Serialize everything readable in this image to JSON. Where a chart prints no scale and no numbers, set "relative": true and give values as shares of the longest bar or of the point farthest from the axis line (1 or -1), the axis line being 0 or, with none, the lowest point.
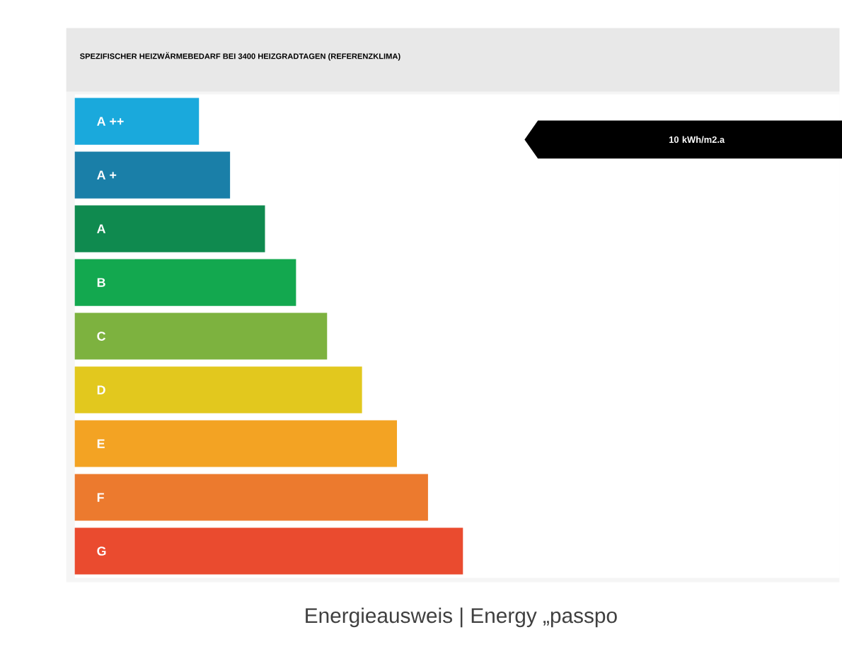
{
  "chart_data": {
    "type": "bar",
    "orientation": "horizontal",
    "relative": true,
    "title": "SPEZIFISCHER HEIZWÄRMEBEDARF BEI 3400 HEIZGRADTAGEN (REFERENZKLIMA)",
    "categories": [
      "A ++",
      "A +",
      "A",
      "B",
      "C",
      "D",
      "E",
      "F",
      "G"
    ],
    "values": [
      0.32,
      0.4,
      0.49,
      0.57,
      0.65,
      0.74,
      0.83,
      0.91,
      1
    ],
    "colors": [
      "#1aa9dc",
      "#1a7fa8",
      "#0f8a4f",
      "#13a84f",
      "#7db23f",
      "#e2c81e",
      "#f3a323",
      "#ec7a2e",
      "#ea4b2f"
    ],
    "annotations": [
      "10 kWh/m2.a",
      "Energieausweis | Energy „passpo"
    ]
  }
}
